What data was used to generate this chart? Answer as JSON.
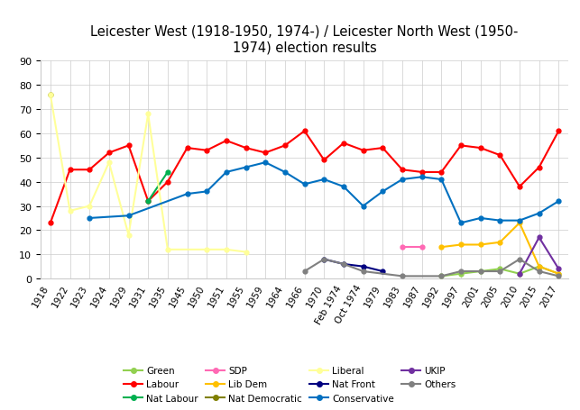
{
  "title": "Leicester West (1918-1950, 1974-) / Leicester North West (1950-\n1974) election results",
  "xlabels": [
    "1918",
    "1922",
    "1923",
    "1924",
    "1929",
    "1931",
    "1935",
    "1945",
    "1950",
    "1951",
    "1955",
    "1959",
    "1964",
    "1966",
    "1970",
    "Feb 1974",
    "Oct 1974",
    "1979",
    "1983",
    "1987",
    "1992",
    "1997",
    "2001",
    "2005",
    "2010",
    "2015",
    "2017"
  ],
  "ylim": [
    0,
    90
  ],
  "yticks": [
    0,
    10,
    20,
    30,
    40,
    50,
    60,
    70,
    80,
    90
  ],
  "series": {
    "Green": {
      "color": "#92D050",
      "data": {
        "1992": 1,
        "1997": 2,
        "2001": 3,
        "2005": 4,
        "2010": 2,
        "2015": 5,
        "2017": 2
      }
    },
    "Labour": {
      "color": "#FF0000",
      "data": {
        "1918": 23,
        "1922": 45,
        "1923": 45,
        "1924": 52,
        "1929": 55,
        "1931": 32,
        "1935": 40,
        "1945": 54,
        "1950": 53,
        "1951": 57,
        "1955": 54,
        "1959": 52,
        "1964": 55,
        "1966": 61,
        "1970": 49,
        "Feb 1974": 56,
        "Oct 1974": 53,
        "1979": 54,
        "1983": 45,
        "1987": 44,
        "1992": 44,
        "1997": 55,
        "2001": 54,
        "2005": 51,
        "2010": 38,
        "2015": 46,
        "2017": 61
      }
    },
    "Nat Labour": {
      "color": "#00B050",
      "data": {
        "1931": 32,
        "1935": 44
      }
    },
    "SDP": {
      "color": "#FF69B4",
      "data": {
        "1983": 13,
        "1987": 13
      }
    },
    "Lib Dem": {
      "color": "#FFC000",
      "data": {
        "1992": 13,
        "1997": 14,
        "2001": 14,
        "2005": 15,
        "2010": 23,
        "2015": 5,
        "2017": 2
      }
    },
    "Nat Democratic": {
      "color": "#808000",
      "data": {
        "1918": 76
      }
    },
    "Liberal": {
      "color": "#FFFF99",
      "data": {
        "1918": 76,
        "1922": 28,
        "1923": 30,
        "1924": 48,
        "1929": 18,
        "1931": 68,
        "1935": 12,
        "1950": 12,
        "1951": 12,
        "1955": 11
      }
    },
    "Nat Front": {
      "color": "#000080",
      "data": {
        "1970": 8,
        "Feb 1974": 6,
        "Oct 1974": 5,
        "1979": 3
      }
    },
    "Conservative": {
      "color": "#0070C0",
      "data": {
        "1923": 25,
        "1929": 26,
        "1945": 35,
        "1950": 36,
        "1951": 44,
        "1955": 46,
        "1959": 48,
        "1964": 44,
        "1966": 39,
        "1970": 41,
        "Feb 1974": 38,
        "Oct 1974": 30,
        "1979": 36,
        "1983": 41,
        "1987": 42,
        "1992": 41,
        "1997": 23,
        "2001": 25,
        "2005": 24,
        "2010": 24,
        "2015": 27,
        "2017": 32
      }
    },
    "UKIP": {
      "color": "#7030A0",
      "data": {
        "2010": 2,
        "2015": 17,
        "2017": 4
      }
    },
    "Others": {
      "color": "#808080",
      "data": {
        "1966": 3,
        "1970": 8,
        "Feb 1974": 6,
        "Oct 1974": 3,
        "1983": 1,
        "1992": 1,
        "1997": 3,
        "2001": 3,
        "2005": 3,
        "2010": 8,
        "2015": 3,
        "2017": 1
      }
    }
  },
  "legend_order": [
    "Green",
    "Labour",
    "Nat Labour",
    "SDP",
    "Lib Dem",
    "Nat Democratic",
    "Liberal",
    "Nat Front",
    "Conservative",
    "UKIP",
    "Others"
  ]
}
